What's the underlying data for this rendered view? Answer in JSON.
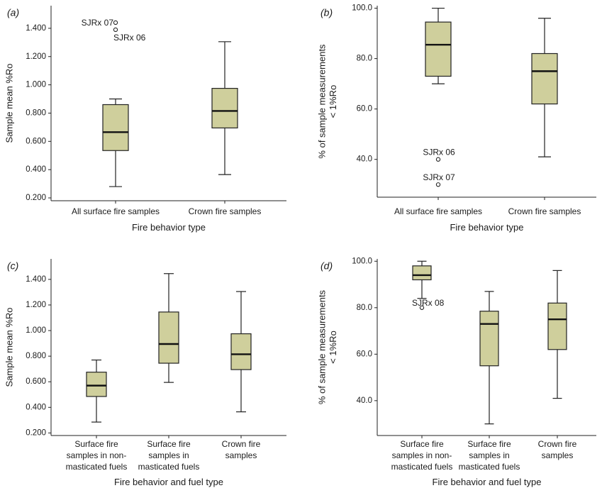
{
  "box_fill": "#cfcf9c",
  "chart_data": [
    {
      "type": "box",
      "panel": "(a)",
      "xlabel": "Fire behavior type",
      "ylabel": [
        "Sample mean %Ro"
      ],
      "ylim": [
        0.18,
        1.56
      ],
      "yticks": [
        0.2,
        0.4,
        0.6,
        0.8,
        1.0,
        1.2,
        1.4
      ],
      "yticklabels": [
        "0.200",
        "0.400",
        "0.600",
        "0.800",
        "1.000",
        "1.200",
        "1.400"
      ],
      "categories": [
        [
          "All surface fire samples"
        ],
        [
          "Crown fire samples"
        ]
      ],
      "boxes": [
        {
          "min": 0.28,
          "q1": 0.535,
          "median": 0.665,
          "q3": 0.86,
          "max": 0.9,
          "outliers": [
            {
              "value": 1.44,
              "label": "SJRx 07",
              "label_side": "left"
            },
            {
              "value": 1.39,
              "label": "SJRx 06",
              "label_side": "below-right"
            }
          ]
        },
        {
          "min": 0.365,
          "q1": 0.695,
          "median": 0.815,
          "q3": 0.975,
          "max": 1.305,
          "outliers": []
        }
      ]
    },
    {
      "type": "box",
      "panel": "(b)",
      "xlabel": "Fire behavior type",
      "ylabel": [
        "% of sample measurements",
        "< 1%Ro"
      ],
      "ylim": [
        25,
        101
      ],
      "yticks": [
        40,
        60,
        80,
        100
      ],
      "yticklabels": [
        "40.0",
        "60.0",
        "80.0",
        "100.0"
      ],
      "categories": [
        [
          "All surface fire samples"
        ],
        [
          "Crown fire samples"
        ]
      ],
      "boxes": [
        {
          "min": 70,
          "q1": 73,
          "median": 85.5,
          "q3": 94.5,
          "max": 100,
          "outliers": [
            {
              "value": 40,
              "label": "SJRx 06",
              "label_side": "above"
            },
            {
              "value": 30,
              "label": "SJRx 07",
              "label_side": "above"
            }
          ]
        },
        {
          "min": 41,
          "q1": 62,
          "median": 75,
          "q3": 82,
          "max": 96,
          "outliers": []
        }
      ]
    },
    {
      "type": "box",
      "panel": "(c)",
      "xlabel": "Fire behavior and fuel type",
      "ylabel": [
        "Sample mean %Ro"
      ],
      "ylim": [
        0.18,
        1.56
      ],
      "yticks": [
        0.2,
        0.4,
        0.6,
        0.8,
        1.0,
        1.2,
        1.4
      ],
      "yticklabels": [
        "0.200",
        "0.400",
        "0.600",
        "0.800",
        "1.000",
        "1.200",
        "1.400"
      ],
      "categories": [
        [
          "Surface fire",
          "samples in non-",
          "masticated fuels"
        ],
        [
          "Surface fire",
          "samples in",
          "masticated fuels"
        ],
        [
          "Crown fire",
          "samples"
        ]
      ],
      "boxes": [
        {
          "min": 0.285,
          "q1": 0.485,
          "median": 0.57,
          "q3": 0.675,
          "max": 0.77,
          "outliers": []
        },
        {
          "min": 0.595,
          "q1": 0.745,
          "median": 0.895,
          "q3": 1.145,
          "max": 1.445,
          "outliers": []
        },
        {
          "min": 0.365,
          "q1": 0.695,
          "median": 0.815,
          "q3": 0.975,
          "max": 1.305,
          "outliers": []
        }
      ]
    },
    {
      "type": "box",
      "panel": "(d)",
      "xlabel": "Fire behavior and fuel type",
      "ylabel": [
        "% of sample measurements",
        "< 1%Ro"
      ],
      "ylim": [
        25,
        101
      ],
      "yticks": [
        40,
        60,
        80,
        100
      ],
      "yticklabels": [
        "40.0",
        "60.0",
        "80.0",
        "100.0"
      ],
      "categories": [
        [
          "Surface fire",
          "samples in non-",
          "masticated fuels"
        ],
        [
          "Surface fire",
          "samples in",
          "masticated fuels"
        ],
        [
          "Crown fire",
          "samples"
        ]
      ],
      "boxes": [
        {
          "min": 84,
          "q1": 92,
          "median": 94,
          "q3": 98,
          "max": 100,
          "outliers": [
            {
              "value": 80,
              "label": "SJRx 08",
              "label_side": "above-right"
            }
          ]
        },
        {
          "min": 30,
          "q1": 55,
          "median": 73,
          "q3": 78.5,
          "max": 87,
          "outliers": []
        },
        {
          "min": 41,
          "q1": 62,
          "median": 75,
          "q3": 82,
          "max": 96,
          "outliers": []
        }
      ]
    }
  ]
}
